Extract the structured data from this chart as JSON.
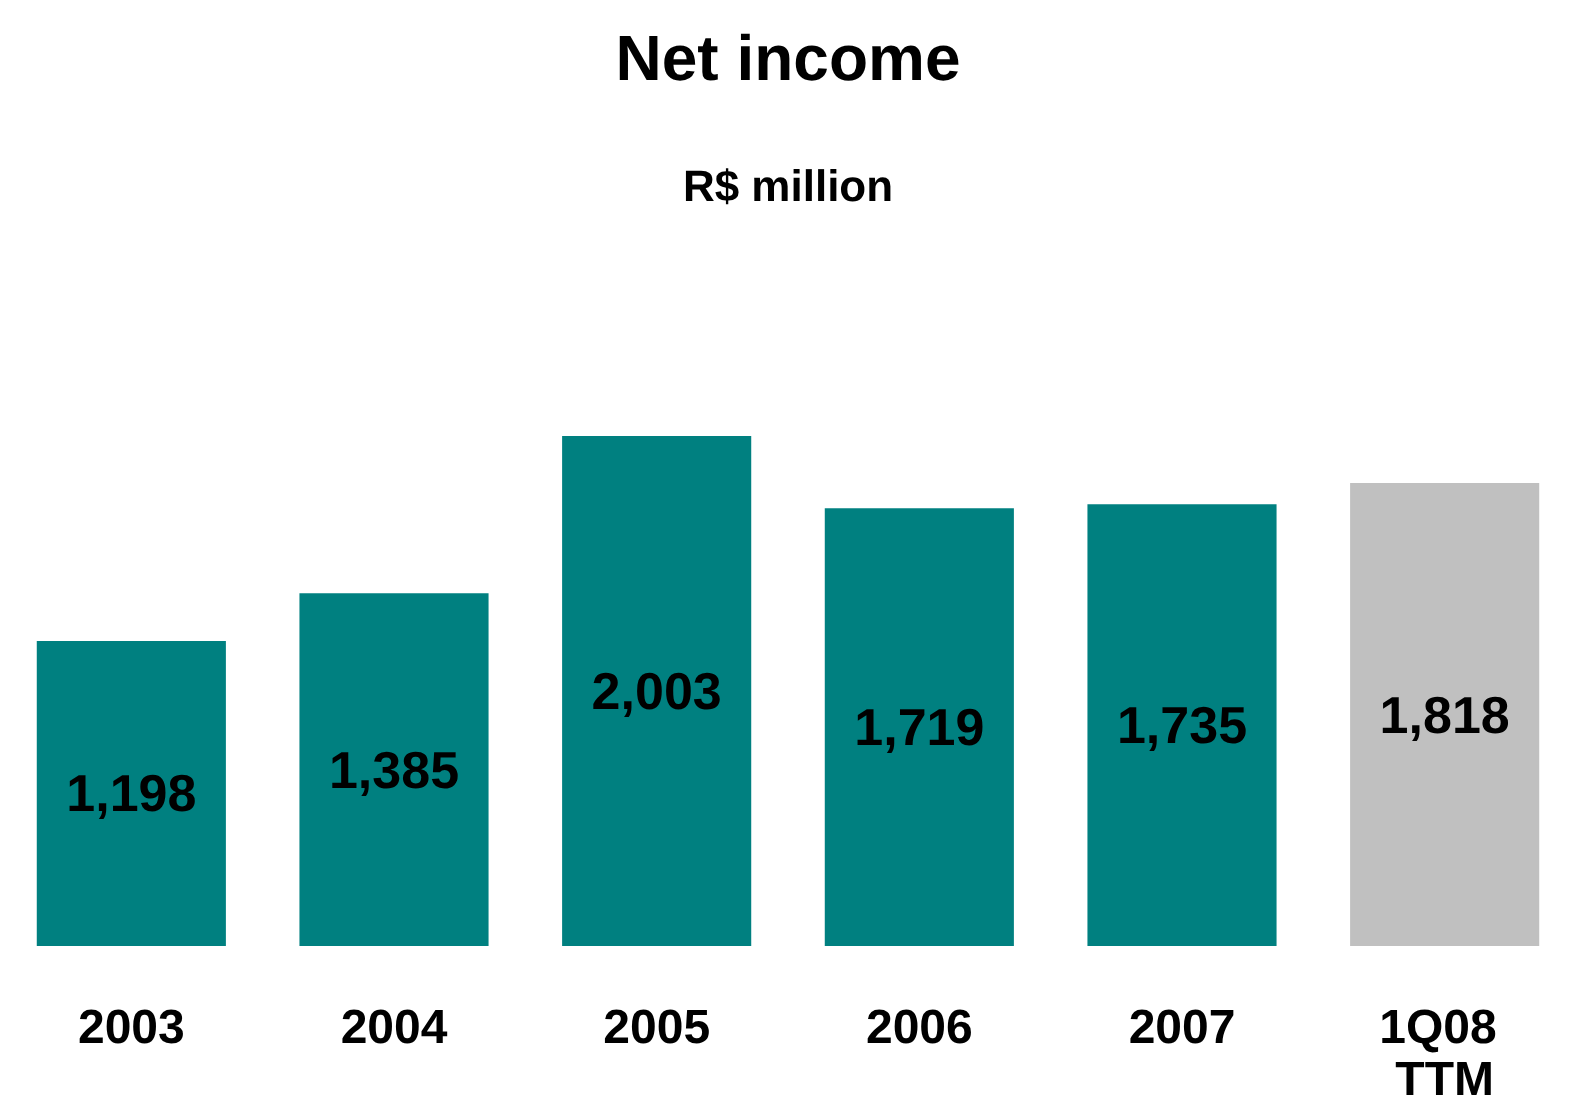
{
  "chart_data": {
    "type": "bar",
    "title": "Net income",
    "subtitle": "R$ million",
    "categories": [
      "2003",
      "2004",
      "2005",
      "2006",
      "2007",
      "1Q08 TTM"
    ],
    "values": [
      1198,
      1385,
      2003,
      1719,
      1735,
      1818
    ],
    "colors": [
      "#008080",
      "#008080",
      "#008080",
      "#008080",
      "#008080",
      "#c0c0c0"
    ],
    "value_labels": [
      "1,198",
      "1,385",
      "2,003",
      "1,719",
      "1,735",
      "1,818"
    ]
  }
}
